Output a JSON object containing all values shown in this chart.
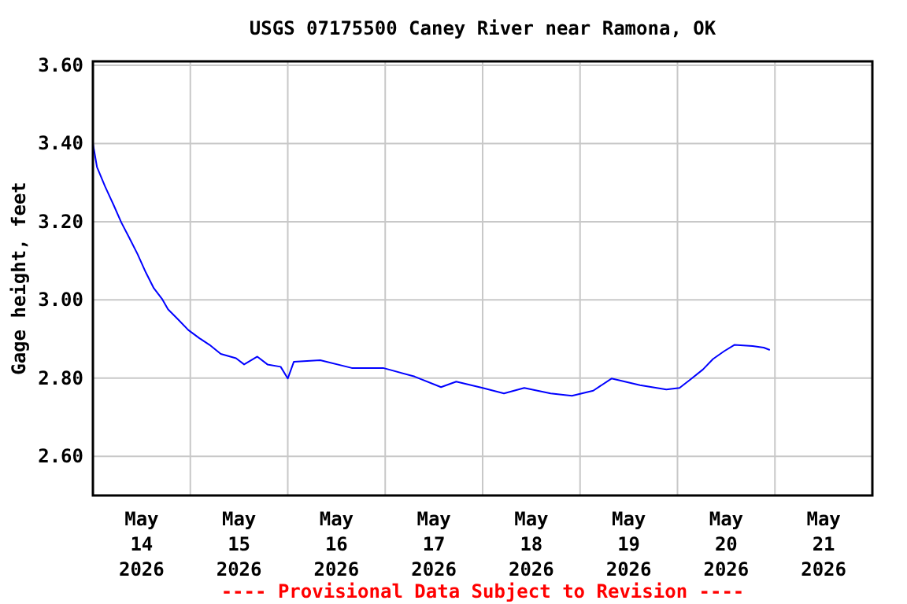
{
  "chart_data": {
    "type": "line",
    "title": "USGS 07175500 Caney River near Ramona, OK",
    "ylabel": "Gage height, feet",
    "annotations": [
      "---- Provisional Data Subject to Revision ----"
    ],
    "x": [
      "2026-05-14T00:00",
      "2026-05-14T01:00",
      "2026-05-14T03:00",
      "2026-05-14T05:00",
      "2026-05-14T07:00",
      "2026-05-14T09:00",
      "2026-05-14T11:00",
      "2026-05-14T13:00",
      "2026-05-14T15:00",
      "2026-05-14T17:00",
      "2026-05-14T18:30",
      "2026-05-14T21:00",
      "2026-05-14T23:30",
      "2026-05-15T02:15",
      "2026-05-15T04:45",
      "2026-05-15T07:30",
      "2026-05-15T11:15",
      "2026-05-15T13:15",
      "2026-05-15T16:30",
      "2026-05-15T19:00",
      "2026-05-15T22:15",
      "2026-05-16T00:00",
      "2026-05-16T01:30",
      "2026-05-16T08:00",
      "2026-05-16T15:45",
      "2026-05-16T23:30",
      "2026-05-17T07:15",
      "2026-05-17T13:45",
      "2026-05-17T17:30",
      "2026-05-18T00:00",
      "2026-05-18T05:15",
      "2026-05-18T10:15",
      "2026-05-18T16:45",
      "2026-05-18T22:00",
      "2026-05-19T03:15",
      "2026-05-19T07:45",
      "2026-05-19T14:45",
      "2026-05-19T21:15",
      "2026-05-20T00:30",
      "2026-05-20T03:00",
      "2026-05-20T06:15",
      "2026-05-20T08:45",
      "2026-05-20T11:30",
      "2026-05-20T14:00",
      "2026-05-20T18:30",
      "2026-05-20T21:15",
      "2026-05-20T22:45"
    ],
    "series": [
      {
        "color": "#0000ff",
        "values": [
          3.4,
          3.34,
          3.29,
          3.245,
          3.198,
          3.158,
          3.117,
          3.071,
          3.03,
          3.003,
          2.976,
          2.95,
          2.923,
          2.902,
          2.885,
          2.862,
          2.851,
          2.835,
          2.855,
          2.835,
          2.829,
          2.799,
          2.842,
          2.846,
          2.826,
          2.826,
          2.804,
          2.777,
          2.791,
          2.775,
          2.761,
          2.775,
          2.761,
          2.755,
          2.768,
          2.799,
          2.782,
          2.771,
          2.775,
          2.795,
          2.822,
          2.849,
          2.869,
          2.885,
          2.882,
          2.878,
          2.872
        ]
      }
    ],
    "xlim": [
      "2026-05-14T00:00",
      "2026-05-22T00:00"
    ],
    "xticks": [
      {
        "value": "2026-05-14T12:00",
        "label": "May\n14\n2026"
      },
      {
        "value": "2026-05-15T00:00",
        "label": null
      },
      {
        "value": "2026-05-15T12:00",
        "label": "May\n15\n2026"
      },
      {
        "value": "2026-05-16T00:00",
        "label": null
      },
      {
        "value": "2026-05-16T12:00",
        "label": "May\n16\n2026"
      },
      {
        "value": "2026-05-17T00:00",
        "label": null
      },
      {
        "value": "2026-05-17T12:00",
        "label": "May\n17\n2026"
      },
      {
        "value": "2026-05-18T00:00",
        "label": null
      },
      {
        "value": "2026-05-18T12:00",
        "label": "May\n18\n2026"
      },
      {
        "value": "2026-05-19T00:00",
        "label": null
      },
      {
        "value": "2026-05-19T12:00",
        "label": "May\n19\n2026"
      },
      {
        "value": "2026-05-20T00:00",
        "label": null
      },
      {
        "value": "2026-05-20T12:00",
        "label": "May\n20\n2026"
      },
      {
        "value": "2026-05-21T00:00",
        "label": null
      },
      {
        "value": "2026-05-21T12:00",
        "label": "May\n21\n2026"
      }
    ],
    "ylim": [
      2.5,
      3.61
    ],
    "yticks": [
      {
        "value": 2.6,
        "label": "2.60"
      },
      {
        "value": 2.8,
        "label": "2.80"
      },
      {
        "value": 3.0,
        "label": "3.00"
      },
      {
        "value": 3.2,
        "label": "3.20"
      },
      {
        "value": 3.4,
        "label": "3.40"
      },
      {
        "value": 3.6,
        "label": "3.60"
      }
    ],
    "grid": true,
    "marker": "none",
    "line_style": "solid"
  }
}
